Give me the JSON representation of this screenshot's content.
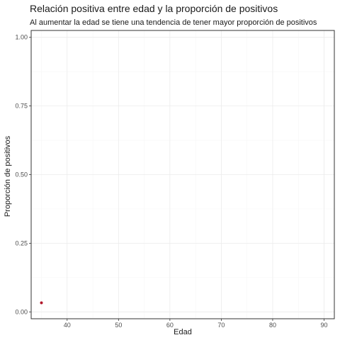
{
  "chart_data": {
    "type": "scatter",
    "title": "Relación positiva entre edad y la proporción de positivos",
    "subtitle": "Al aumentar la edad se tiene una tendencia de tener mayor proporción de positivos",
    "xlabel": "Edad",
    "ylabel": "Proporción de positivos",
    "xlim": [
      33,
      92
    ],
    "ylim": [
      -0.025,
      1.025
    ],
    "x_ticks": [
      40,
      50,
      60,
      70,
      80,
      90
    ],
    "y_ticks": [
      0.0,
      0.25,
      0.5,
      0.75,
      1.0
    ],
    "x_tick_labels": [
      "40",
      "50",
      "60",
      "70",
      "80",
      "90"
    ],
    "y_tick_labels": [
      "0.00",
      "0.25",
      "0.50",
      "0.75",
      "1.00"
    ],
    "grid": true,
    "point_color": "#b2182b",
    "points": [
      {
        "x": 35,
        "y": 0.033
      }
    ]
  }
}
